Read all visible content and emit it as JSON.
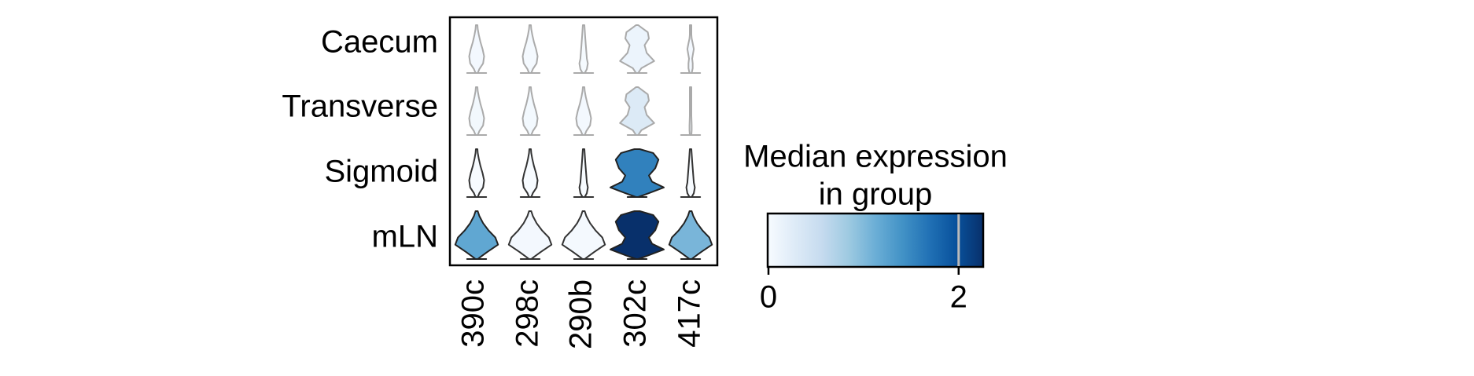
{
  "chart_data": {
    "type": "stacked-violin",
    "rows": [
      "Caecum",
      "Transverse",
      "Sigmoid",
      "mLN"
    ],
    "columns": [
      "390c",
      "298c",
      "290b",
      "302c",
      "417c"
    ],
    "median_expression": [
      [
        0.05,
        0.03,
        0.02,
        0.12,
        0.05
      ],
      [
        0.06,
        0.04,
        0.05,
        0.3,
        0.02
      ],
      [
        0.0,
        0.0,
        0.0,
        1.55,
        0.0
      ],
      [
        1.2,
        0.05,
        0.03,
        2.25,
        1.05
      ]
    ],
    "colorbar": {
      "title_line1": "Median expression",
      "title_line2": "in group",
      "min": 0,
      "max": 2.25,
      "ticks": [
        {
          "value": 0,
          "label": "0"
        },
        {
          "value": 2,
          "label": "2"
        }
      ],
      "colors": [
        "#f7fbff",
        "#deebf7",
        "#c6dbef",
        "#9ecae1",
        "#6baed6",
        "#4292c6",
        "#2171b5",
        "#08519c",
        "#08306b"
      ]
    },
    "grid": false,
    "legend_placement": "right"
  }
}
